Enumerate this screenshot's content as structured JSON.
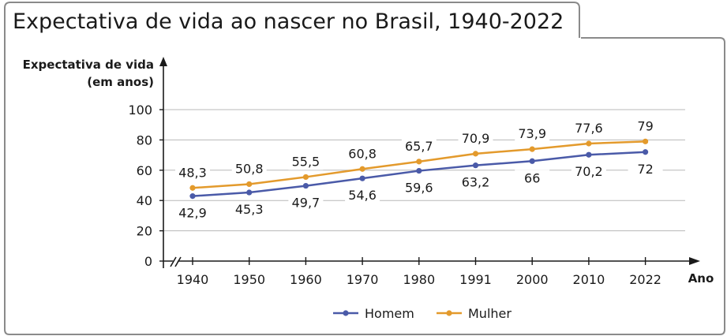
{
  "title": "Expectativa de vida ao nascer no Brasil, 1940-2022",
  "colors": {
    "homem": "#4a5aa8",
    "mulher": "#e39a2c",
    "frame": "#8a8a8a",
    "grid": "#b8b8b8"
  },
  "chart_data": {
    "type": "line",
    "title": "Expectativa de vida ao nascer no Brasil, 1940-2022",
    "ylabel_line1": "Expectativa de vida",
    "ylabel_line2": "(em anos)",
    "xlabel": "Ano",
    "categories": [
      "1940",
      "1950",
      "1960",
      "1970",
      "1980",
      "1991",
      "2000",
      "2010",
      "2022"
    ],
    "yticks": [
      "0",
      "20",
      "40",
      "60",
      "80",
      "100"
    ],
    "ylim": [
      0,
      100
    ],
    "grid": true,
    "legend_position": "bottom-center",
    "series": [
      {
        "key": "homem",
        "name": "Homem",
        "color": "#4a5aa8",
        "values": [
          42.9,
          45.3,
          49.7,
          54.6,
          59.6,
          63.2,
          66,
          70.2,
          72
        ],
        "labels": [
          "42,9",
          "45,3",
          "49,7",
          "54,6",
          "59,6",
          "63,2",
          "66",
          "70,2",
          "72"
        ]
      },
      {
        "key": "mulher",
        "name": "Mulher",
        "color": "#e39a2c",
        "values": [
          48.3,
          50.8,
          55.5,
          60.8,
          65.7,
          70.9,
          73.9,
          77.6,
          79
        ],
        "labels": [
          "48,3",
          "50,8",
          "55,5",
          "60,8",
          "65,7",
          "70,9",
          "73,9",
          "77,6",
          "79"
        ]
      }
    ]
  }
}
